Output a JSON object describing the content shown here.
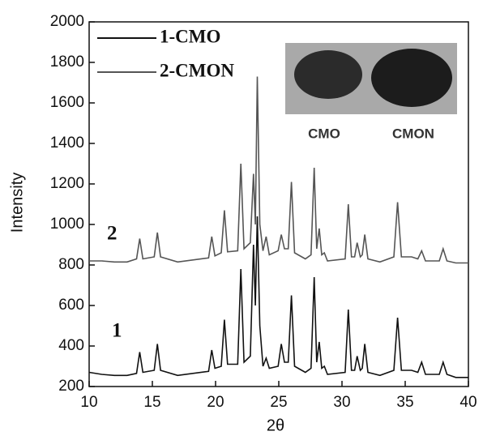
{
  "chart_data": {
    "type": "line",
    "x_label": "2θ",
    "y_label": "Intensity",
    "x": [
      10,
      11,
      12,
      13,
      13.75,
      14.0,
      14.25,
      15.15,
      15.4,
      15.65,
      17,
      19.45,
      19.7,
      19.95,
      20.45,
      20.7,
      20.95,
      21.75,
      22.0,
      22.25,
      22.75,
      23.0,
      23.15,
      23.3,
      23.5,
      23.75,
      24.0,
      24.25,
      24.95,
      25.2,
      25.45,
      25.75,
      26.0,
      26.25,
      27.1,
      27.55,
      27.8,
      28.0,
      28.2,
      28.4,
      28.6,
      28.85,
      30.25,
      30.5,
      30.75,
      31.0,
      31.2,
      31.45,
      31.6,
      31.8,
      32.05,
      33,
      34.1,
      34.4,
      34.7,
      35.5,
      36.0,
      36.3,
      36.6,
      37.7,
      38.0,
      38.3,
      39,
      40
    ],
    "series": [
      {
        "name": "1-CMO",
        "color": "#111111",
        "values": [
          270,
          260,
          255,
          255,
          265,
          370,
          270,
          280,
          410,
          280,
          255,
          275,
          380,
          290,
          300,
          530,
          310,
          310,
          780,
          320,
          350,
          900,
          600,
          1040,
          500,
          300,
          340,
          290,
          300,
          410,
          320,
          320,
          650,
          300,
          270,
          290,
          740,
          320,
          420,
          290,
          300,
          260,
          270,
          580,
          280,
          280,
          350,
          280,
          290,
          410,
          270,
          255,
          280,
          540,
          280,
          280,
          270,
          320,
          260,
          260,
          320,
          260,
          245,
          245
        ]
      },
      {
        "name": "2-CMON",
        "color": "#555555",
        "values": [
          820,
          820,
          815,
          815,
          830,
          930,
          830,
          840,
          960,
          840,
          815,
          835,
          940,
          845,
          860,
          1070,
          865,
          870,
          1300,
          880,
          910,
          1250,
          1000,
          1730,
          1000,
          870,
          940,
          850,
          870,
          950,
          880,
          880,
          1210,
          860,
          830,
          850,
          1280,
          880,
          980,
          850,
          860,
          820,
          830,
          1100,
          840,
          840,
          910,
          840,
          850,
          950,
          830,
          815,
          840,
          1110,
          840,
          840,
          830,
          870,
          820,
          820,
          880,
          820,
          810,
          810
        ]
      }
    ],
    "xlim": [
      10,
      40
    ],
    "xticks": [
      10,
      15,
      20,
      25,
      30,
      35,
      40
    ],
    "ylim": [
      200,
      2000
    ],
    "yticks": [
      200,
      400,
      600,
      800,
      1000,
      1200,
      1400,
      1600,
      1800,
      2000
    ],
    "annotations": [
      "1",
      "2"
    ],
    "inset_labels": [
      "CMO",
      "CMON"
    ]
  }
}
